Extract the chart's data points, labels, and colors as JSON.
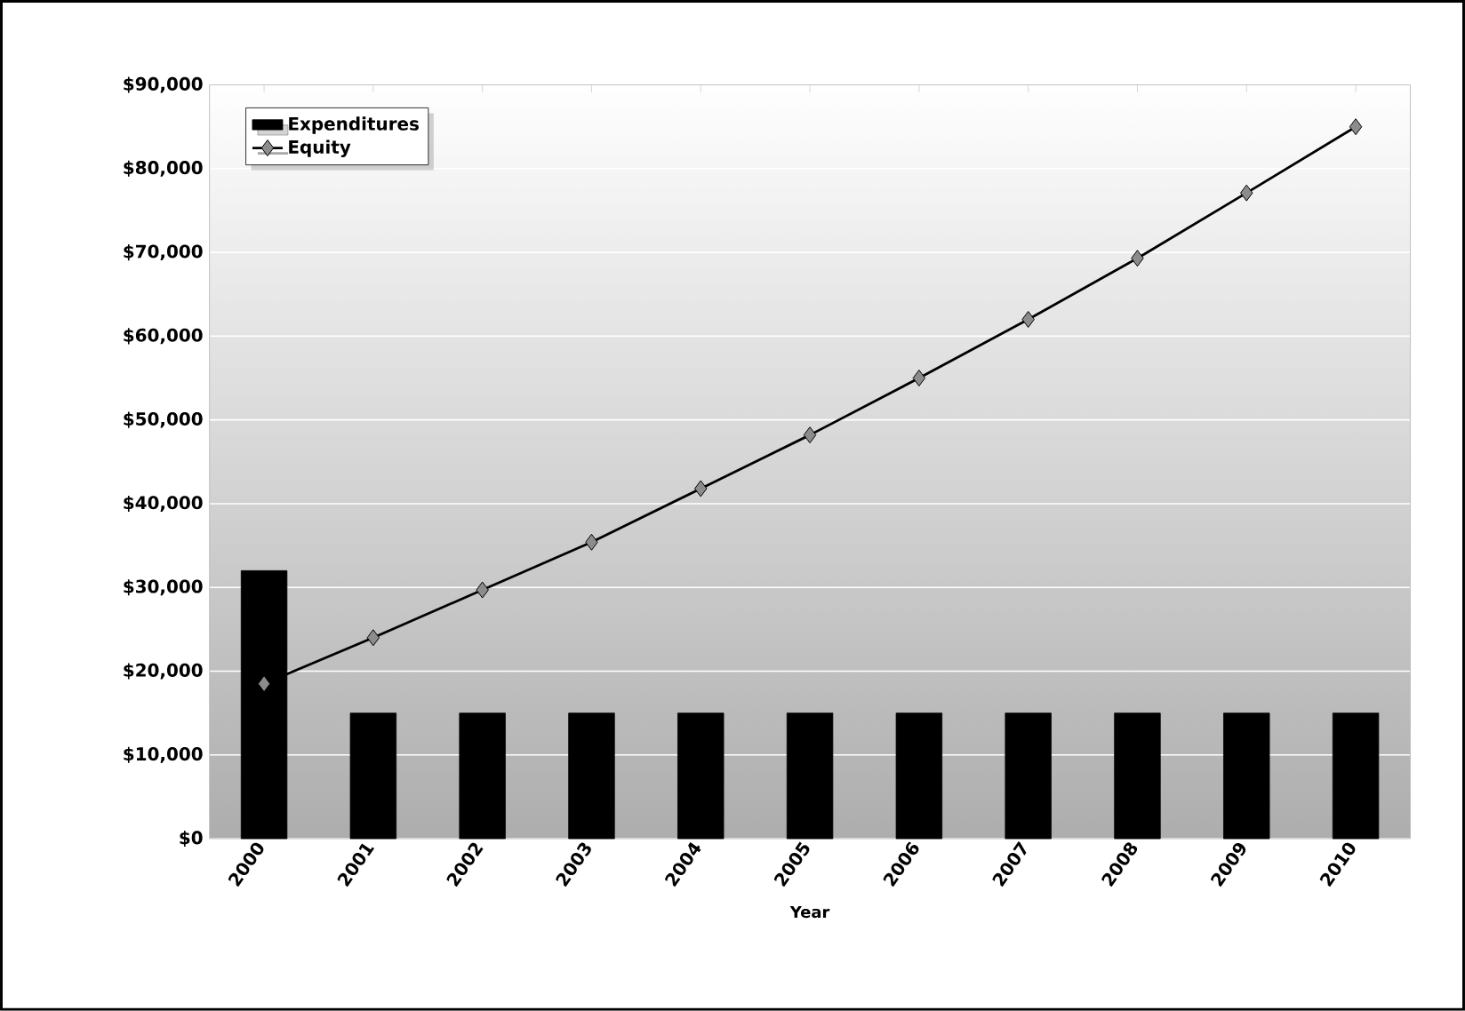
{
  "chart_data": {
    "type": "bar",
    "xlabel": "Year",
    "categories": [
      "2000",
      "2001",
      "2002",
      "2003",
      "2004",
      "2005",
      "2006",
      "2007",
      "2008",
      "2009",
      "2010"
    ],
    "series": [
      {
        "name": "Expenditures",
        "color": "#000000",
        "values": [
          32000,
          15000,
          15000,
          15000,
          15000,
          15000,
          15000,
          15000,
          15000,
          15000,
          15000
        ]
      },
      {
        "name": "Equity",
        "type": "line",
        "color": "#000000",
        "marker": "diamond",
        "values": [
          18500,
          24000,
          29700,
          35400,
          41800,
          48200,
          55000,
          62000,
          69300,
          77100,
          85000
        ]
      }
    ],
    "ylim": [
      0,
      90000
    ],
    "yticks": [
      {
        "value": 0,
        "label": "$0"
      },
      {
        "value": 10000,
        "label": "$10,000"
      },
      {
        "value": 20000,
        "label": "$20,000"
      },
      {
        "value": 30000,
        "label": "$30,000"
      },
      {
        "value": 40000,
        "label": "$40,000"
      },
      {
        "value": 50000,
        "label": "$50,000"
      },
      {
        "value": 60000,
        "label": "$60,000"
      },
      {
        "value": 70000,
        "label": "$70,000"
      },
      {
        "value": 80000,
        "label": "$80,000"
      },
      {
        "value": 90000,
        "label": "$90,000"
      }
    ],
    "grid": "y",
    "legend": "top left"
  }
}
